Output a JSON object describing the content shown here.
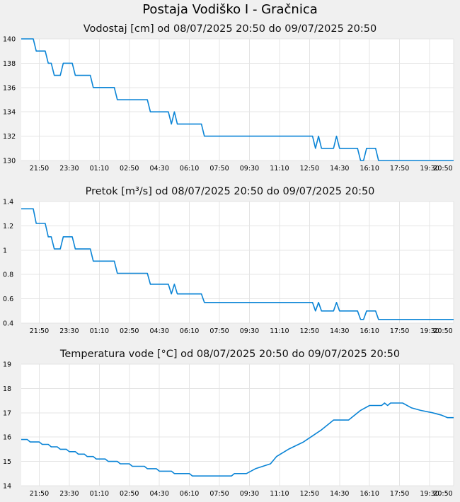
{
  "page_title": "Postaja Vodiško I - Gračnica",
  "chart_data": [
    {
      "type": "line",
      "title": "Vodostaj [cm] od 08/07/2025 20:50 do 09/07/2025 20:50",
      "y_range": [
        130,
        140
      ],
      "y_ticks": [
        130,
        132,
        134,
        136,
        138,
        140
      ],
      "y_tick_labels": [
        "130",
        "132",
        "134",
        "136",
        "138",
        "140"
      ],
      "x_range": [
        "08/07/2025 20:50",
        "09/07/2025 20:50"
      ],
      "x_ticks": [
        "21:50",
        "23:30",
        "01:10",
        "02:50",
        "04:30",
        "06:10",
        "07:50",
        "09:30",
        "11:10",
        "12:50",
        "14:30",
        "16:10",
        "17:50",
        "19:30",
        "20:50"
      ],
      "grid": true,
      "series": [
        {
          "color": "#0a84d6",
          "points": [
            [
              "20:50",
              140
            ],
            [
              "21:30",
              140
            ],
            [
              "21:40",
              139
            ],
            [
              "22:10",
              139
            ],
            [
              "22:20",
              138
            ],
            [
              "22:30",
              138
            ],
            [
              "22:40",
              137
            ],
            [
              "23:00",
              137
            ],
            [
              "23:10",
              138
            ],
            [
              "23:40",
              138
            ],
            [
              "23:50",
              137
            ],
            [
              "00:40",
              137
            ],
            [
              "00:50",
              136
            ],
            [
              "02:00",
              136
            ],
            [
              "02:10",
              135
            ],
            [
              "03:50",
              135
            ],
            [
              "04:00",
              134
            ],
            [
              "05:00",
              134
            ],
            [
              "05:10",
              133
            ],
            [
              "05:20",
              134
            ],
            [
              "05:30",
              133
            ],
            [
              "06:50",
              133
            ],
            [
              "07:00",
              132
            ],
            [
              "13:00",
              132
            ],
            [
              "13:10",
              131
            ],
            [
              "13:20",
              132
            ],
            [
              "13:30",
              131
            ],
            [
              "14:10",
              131
            ],
            [
              "14:20",
              132
            ],
            [
              "14:30",
              131
            ],
            [
              "15:30",
              131
            ],
            [
              "15:40",
              130
            ],
            [
              "15:50",
              130
            ],
            [
              "16:00",
              131
            ],
            [
              "16:30",
              131
            ],
            [
              "16:40",
              130
            ],
            [
              "20:50",
              130
            ]
          ]
        }
      ]
    },
    {
      "type": "line",
      "title": "Pretok [m³/s] od 08/07/2025 20:50 do 09/07/2025 20:50",
      "y_range": [
        0.4,
        1.4
      ],
      "y_ticks": [
        0.4,
        0.6,
        0.8,
        1.0,
        1.2,
        1.4
      ],
      "y_tick_labels": [
        "0.4",
        "0.6",
        "0.8",
        "1",
        "1.2",
        "1.4"
      ],
      "x_range": [
        "08/07/2025 20:50",
        "09/07/2025 20:50"
      ],
      "x_ticks": [
        "21:50",
        "23:30",
        "01:10",
        "02:50",
        "04:30",
        "06:10",
        "07:50",
        "09:30",
        "11:10",
        "12:50",
        "14:30",
        "16:10",
        "17:50",
        "19:30",
        "20:50"
      ],
      "grid": true,
      "series": [
        {
          "color": "#0a84d6",
          "points": [
            [
              "20:50",
              1.34
            ],
            [
              "21:30",
              1.34
            ],
            [
              "21:40",
              1.22
            ],
            [
              "22:10",
              1.22
            ],
            [
              "22:20",
              1.11
            ],
            [
              "22:30",
              1.11
            ],
            [
              "22:40",
              1.01
            ],
            [
              "23:00",
              1.01
            ],
            [
              "23:10",
              1.11
            ],
            [
              "23:40",
              1.11
            ],
            [
              "23:50",
              1.01
            ],
            [
              "00:40",
              1.01
            ],
            [
              "00:50",
              0.91
            ],
            [
              "02:00",
              0.91
            ],
            [
              "02:10",
              0.81
            ],
            [
              "03:50",
              0.81
            ],
            [
              "04:00",
              0.72
            ],
            [
              "05:00",
              0.72
            ],
            [
              "05:10",
              0.64
            ],
            [
              "05:20",
              0.72
            ],
            [
              "05:30",
              0.64
            ],
            [
              "06:50",
              0.64
            ],
            [
              "07:00",
              0.57
            ],
            [
              "13:00",
              0.57
            ],
            [
              "13:10",
              0.5
            ],
            [
              "13:20",
              0.57
            ],
            [
              "13:30",
              0.5
            ],
            [
              "14:10",
              0.5
            ],
            [
              "14:20",
              0.57
            ],
            [
              "14:30",
              0.5
            ],
            [
              "15:30",
              0.5
            ],
            [
              "15:40",
              0.43
            ],
            [
              "15:50",
              0.43
            ],
            [
              "16:00",
              0.5
            ],
            [
              "16:30",
              0.5
            ],
            [
              "16:40",
              0.43
            ],
            [
              "20:50",
              0.43
            ]
          ]
        }
      ]
    },
    {
      "type": "line",
      "title": "Temperatura vode [°C] od 08/07/2025 20:50 do 09/07/2025 20:50",
      "y_range": [
        14,
        19
      ],
      "y_ticks": [
        14,
        15,
        16,
        17,
        18,
        19
      ],
      "y_tick_labels": [
        "14",
        "15",
        "16",
        "17",
        "18",
        "19"
      ],
      "x_range": [
        "08/07/2025 20:50",
        "09/07/2025 20:50"
      ],
      "x_ticks": [
        "21:50",
        "23:30",
        "01:10",
        "02:50",
        "04:30",
        "06:10",
        "07:50",
        "09:30",
        "11:10",
        "12:50",
        "14:30",
        "16:10",
        "17:50",
        "19:30",
        "20:50"
      ],
      "grid": true,
      "series": [
        {
          "color": "#0a84d6",
          "points": [
            [
              "20:50",
              15.9
            ],
            [
              "21:10",
              15.9
            ],
            [
              "21:20",
              15.8
            ],
            [
              "21:50",
              15.8
            ],
            [
              "22:00",
              15.7
            ],
            [
              "22:20",
              15.7
            ],
            [
              "22:30",
              15.6
            ],
            [
              "22:50",
              15.6
            ],
            [
              "23:00",
              15.5
            ],
            [
              "23:20",
              15.5
            ],
            [
              "23:30",
              15.4
            ],
            [
              "23:50",
              15.4
            ],
            [
              "00:00",
              15.3
            ],
            [
              "00:20",
              15.3
            ],
            [
              "00:30",
              15.2
            ],
            [
              "00:50",
              15.2
            ],
            [
              "01:00",
              15.1
            ],
            [
              "01:30",
              15.1
            ],
            [
              "01:40",
              15.0
            ],
            [
              "02:10",
              15.0
            ],
            [
              "02:20",
              14.9
            ],
            [
              "02:50",
              14.9
            ],
            [
              "03:00",
              14.8
            ],
            [
              "03:40",
              14.8
            ],
            [
              "03:50",
              14.7
            ],
            [
              "04:20",
              14.7
            ],
            [
              "04:30",
              14.6
            ],
            [
              "05:10",
              14.6
            ],
            [
              "05:20",
              14.5
            ],
            [
              "06:10",
              14.5
            ],
            [
              "06:20",
              14.4
            ],
            [
              "08:30",
              14.4
            ],
            [
              "08:40",
              14.5
            ],
            [
              "09:20",
              14.5
            ],
            [
              "09:50",
              14.7
            ],
            [
              "10:40",
              14.9
            ],
            [
              "11:00",
              15.2
            ],
            [
              "11:40",
              15.5
            ],
            [
              "12:30",
              15.8
            ],
            [
              "13:30",
              16.3
            ],
            [
              "14:00",
              16.6
            ],
            [
              "14:10",
              16.7
            ],
            [
              "15:00",
              16.7
            ],
            [
              "15:40",
              17.1
            ],
            [
              "16:10",
              17.3
            ],
            [
              "16:50",
              17.3
            ],
            [
              "17:00",
              17.4
            ],
            [
              "17:10",
              17.3
            ],
            [
              "17:20",
              17.4
            ],
            [
              "18:00",
              17.4
            ],
            [
              "18:30",
              17.2
            ],
            [
              "19:00",
              17.1
            ],
            [
              "19:40",
              17.0
            ],
            [
              "20:10",
              16.9
            ],
            [
              "20:30",
              16.8
            ],
            [
              "20:50",
              16.8
            ]
          ]
        }
      ]
    }
  ]
}
